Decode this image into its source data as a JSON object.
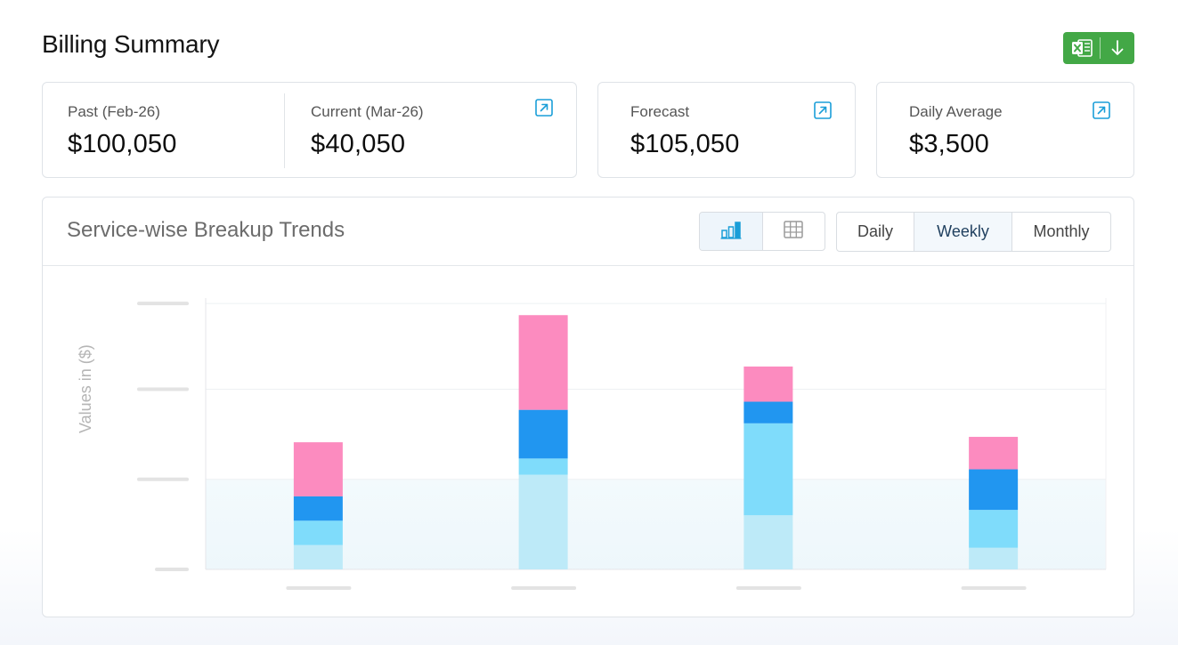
{
  "page": {
    "title": "Billing Summary"
  },
  "export": {
    "icon": "excel-icon",
    "action_icon": "download-arrow-icon",
    "color": "#43a846"
  },
  "stats": {
    "past": {
      "label": "Past  (Feb-26)",
      "value": "$100,050"
    },
    "current": {
      "label": "Current  (Mar-26)",
      "value": "$40,050"
    },
    "forecast": {
      "label": "Forecast",
      "value": "$105,050"
    },
    "daily_average": {
      "label": "Daily Average",
      "value": "$3,500"
    }
  },
  "panel": {
    "title": "Service-wise Breakup Trends",
    "view_options": [
      {
        "icon": "bar-chart-icon",
        "active": true
      },
      {
        "icon": "table-grid-icon",
        "active": false
      }
    ],
    "periods": [
      "Daily",
      "Weekly",
      "Monthly"
    ],
    "active_period": "Weekly"
  },
  "chart_data": {
    "type": "bar",
    "stacked": true,
    "ylabel": "Values in ($)",
    "categories": [
      "",
      "",
      "",
      ""
    ],
    "ylim": [
      0,
      100
    ],
    "grid": true,
    "series": [
      {
        "color": "#bdeaf8",
        "values": [
          9,
          35,
          20,
          8
        ]
      },
      {
        "color": "#7fdcfb",
        "values": [
          9,
          6,
          34,
          14
        ]
      },
      {
        "color": "#2196f0",
        "values": [
          9,
          18,
          8,
          15
        ]
      },
      {
        "color": "#fc8bbf",
        "values": [
          20,
          35,
          13,
          12
        ]
      }
    ]
  },
  "colors": {
    "accent": "#1a9ed8",
    "border": "#dfe3e8"
  }
}
